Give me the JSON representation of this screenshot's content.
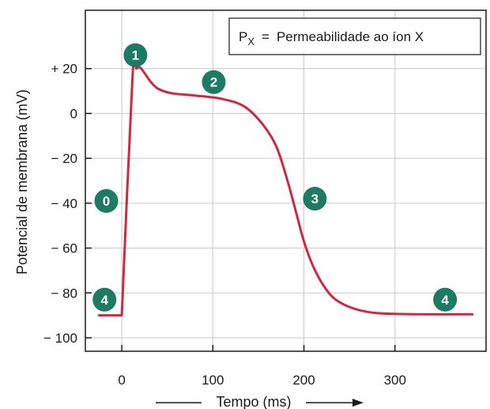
{
  "chart_data": {
    "type": "line",
    "xlabel": "Tempo (ms)",
    "ylabel": "Potencial de membrana (mV)",
    "xlim": [
      -40,
      400
    ],
    "ylim": [
      -106,
      46
    ],
    "x_ticks": [
      {
        "value": 0,
        "label": "0"
      },
      {
        "value": 100,
        "label": "100"
      },
      {
        "value": 200,
        "label": "200"
      },
      {
        "value": 300,
        "label": "300"
      }
    ],
    "y_ticks": [
      {
        "value": 20,
        "label": "+ 20"
      },
      {
        "value": 0,
        "label": "0"
      },
      {
        "value": -20,
        "label": "− 20"
      },
      {
        "value": -40,
        "label": "− 40"
      },
      {
        "value": -60,
        "label": "− 60"
      },
      {
        "value": -80,
        "label": "− 80"
      },
      {
        "value": -100,
        "label": "− 100"
      }
    ],
    "grid": true,
    "legend": {
      "position": "top-right",
      "symbol": "P",
      "subscript": "X",
      "equals": "=",
      "text": "Permeabilidade ao íon X"
    },
    "series": [
      {
        "color": "#d0293f",
        "points": [
          [
            -25,
            -90
          ],
          [
            -2,
            -90
          ],
          [
            0,
            -90
          ],
          [
            12,
            18
          ],
          [
            16,
            20
          ],
          [
            20,
            20.5
          ],
          [
            25,
            18
          ],
          [
            32,
            14
          ],
          [
            40,
            11
          ],
          [
            55,
            9
          ],
          [
            80,
            8
          ],
          [
            110,
            6.5
          ],
          [
            135,
            3
          ],
          [
            155,
            -5
          ],
          [
            170,
            -15
          ],
          [
            182,
            -30
          ],
          [
            192,
            -45
          ],
          [
            200,
            -57
          ],
          [
            210,
            -68
          ],
          [
            222,
            -77
          ],
          [
            235,
            -83
          ],
          [
            255,
            -87
          ],
          [
            280,
            -89
          ],
          [
            320,
            -89.5
          ],
          [
            385,
            -89.5
          ]
        ]
      }
    ],
    "annotations": [
      {
        "label": "0",
        "x": -17,
        "y": -39
      },
      {
        "label": "1",
        "x": 15,
        "y": 26
      },
      {
        "label": "2",
        "x": 101,
        "y": 14
      },
      {
        "label": "3",
        "x": 212,
        "y": -38
      },
      {
        "label": "4",
        "x": -19,
        "y": -83
      },
      {
        "label": "4",
        "x": 355,
        "y": -83
      }
    ],
    "annotation_color": "#1e7b63",
    "arrow_color": "#1a1a1a"
  }
}
